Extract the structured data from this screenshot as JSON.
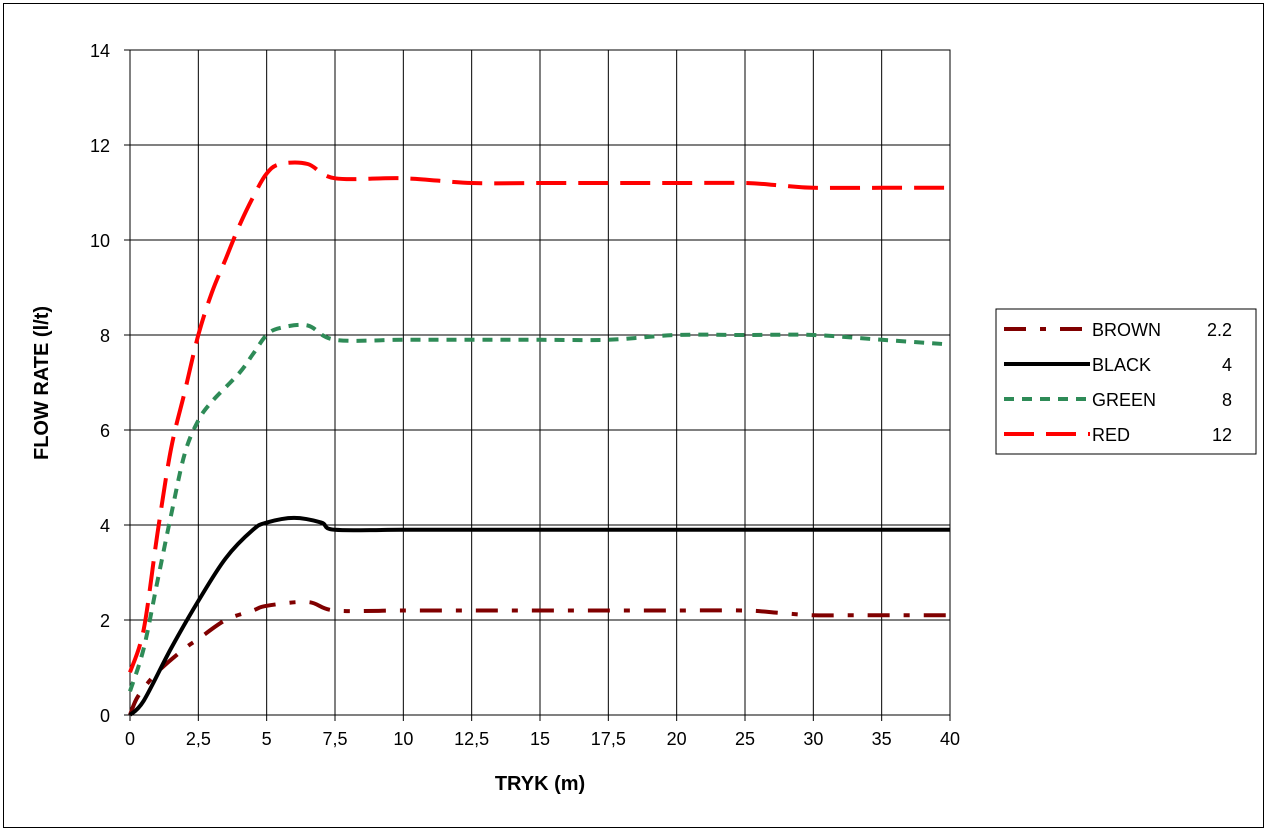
{
  "chart_data": {
    "type": "line",
    "xlabel": "TRYK (m)",
    "ylabel": "FLOW RATE (l/t)",
    "x": [
      0,
      2.5,
      5,
      7.5,
      10,
      12.5,
      15,
      17.5,
      20,
      25,
      30,
      35,
      40
    ],
    "x_tick_labels": [
      "0",
      "2,5",
      "5",
      "7,5",
      "10",
      "12,5",
      "15",
      "17,5",
      "20",
      "25",
      "30",
      "35",
      "40"
    ],
    "ylim": [
      0,
      14
    ],
    "y_ticks": [
      0,
      2,
      4,
      6,
      8,
      10,
      12,
      14
    ],
    "y_tick_labels": [
      "0",
      "2",
      "4",
      "6",
      "8",
      "10",
      "12",
      "14"
    ],
    "grid": true,
    "legend_position": "right",
    "series": [
      {
        "name": "BROWN",
        "legend_value": "2.2",
        "color": "#800000",
        "style": "dash-dot",
        "points": [
          [
            0,
            0
          ],
          [
            0.3,
            0.4
          ],
          [
            1,
            0.9
          ],
          [
            2,
            1.4
          ],
          [
            2.5,
            1.6
          ],
          [
            3.5,
            2.0
          ],
          [
            4.5,
            2.2
          ],
          [
            5,
            2.3
          ],
          [
            6.5,
            2.38
          ],
          [
            7.5,
            2.2
          ],
          [
            10,
            2.2
          ],
          [
            12.5,
            2.2
          ],
          [
            15,
            2.2
          ],
          [
            17.5,
            2.2
          ],
          [
            20,
            2.2
          ],
          [
            25,
            2.2
          ],
          [
            27.5,
            2.15
          ],
          [
            30,
            2.1
          ],
          [
            32.5,
            2.1
          ],
          [
            35,
            2.1
          ],
          [
            40,
            2.1
          ]
        ]
      },
      {
        "name": "BLACK",
        "legend_value": "4",
        "color": "#000000",
        "style": "solid",
        "points": [
          [
            0,
            0
          ],
          [
            0.5,
            0.3
          ],
          [
            1.5,
            1.4
          ],
          [
            2.5,
            2.4
          ],
          [
            3.5,
            3.3
          ],
          [
            4.5,
            3.9
          ],
          [
            5,
            4.05
          ],
          [
            6,
            4.15
          ],
          [
            7,
            4.05
          ],
          [
            7.5,
            3.9
          ],
          [
            10,
            3.9
          ],
          [
            15,
            3.9
          ],
          [
            20,
            3.9
          ],
          [
            25,
            3.9
          ],
          [
            30,
            3.9
          ],
          [
            35,
            3.9
          ],
          [
            40,
            3.9
          ]
        ]
      },
      {
        "name": "GREEN",
        "legend_value": "8",
        "color": "#2E8B57",
        "style": "dotted",
        "points": [
          [
            0,
            0.5
          ],
          [
            0.5,
            1.4
          ],
          [
            1,
            2.8
          ],
          [
            1.5,
            4.2
          ],
          [
            2,
            5.5
          ],
          [
            2.5,
            6.2
          ],
          [
            3,
            6.6
          ],
          [
            4,
            7.2
          ],
          [
            4.5,
            7.6
          ],
          [
            5,
            8.0
          ],
          [
            5.5,
            8.15
          ],
          [
            6.5,
            8.2
          ],
          [
            7.5,
            7.9
          ],
          [
            10,
            7.9
          ],
          [
            12.5,
            7.9
          ],
          [
            15,
            7.9
          ],
          [
            17.5,
            7.9
          ],
          [
            20,
            8.0
          ],
          [
            25,
            8.0
          ],
          [
            30,
            8.0
          ],
          [
            35,
            7.9
          ],
          [
            40,
            7.8
          ]
        ]
      },
      {
        "name": "RED",
        "legend_value": "12",
        "color": "#FF0000",
        "style": "dashed",
        "points": [
          [
            0,
            0.9
          ],
          [
            0.5,
            1.8
          ],
          [
            1,
            3.8
          ],
          [
            1.5,
            5.6
          ],
          [
            2,
            6.8
          ],
          [
            2.5,
            8.0
          ],
          [
            3,
            8.9
          ],
          [
            3.5,
            9.6
          ],
          [
            4,
            10.3
          ],
          [
            4.5,
            10.9
          ],
          [
            5,
            11.4
          ],
          [
            5.5,
            11.6
          ],
          [
            6.5,
            11.6
          ],
          [
            7.5,
            11.3
          ],
          [
            10,
            11.3
          ],
          [
            12.5,
            11.2
          ],
          [
            15,
            11.2
          ],
          [
            17.5,
            11.2
          ],
          [
            20,
            11.2
          ],
          [
            25,
            11.2
          ],
          [
            27.5,
            11.15
          ],
          [
            30,
            11.1
          ],
          [
            35,
            11.1
          ],
          [
            40,
            11.1
          ]
        ]
      }
    ]
  }
}
